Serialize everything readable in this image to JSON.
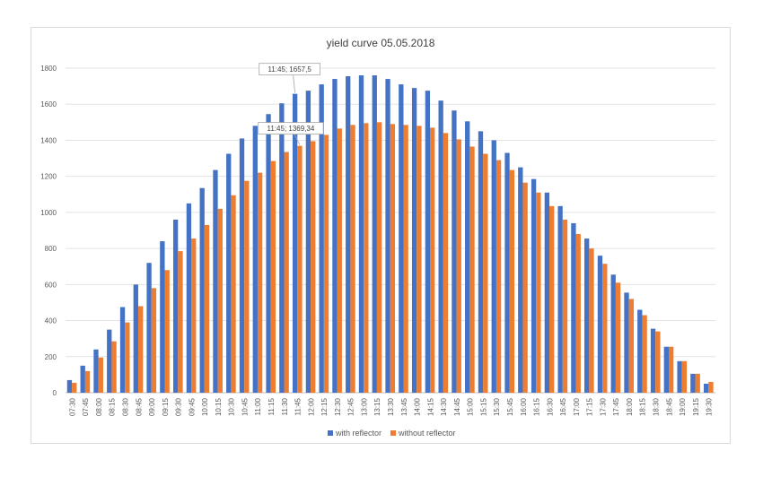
{
  "chart_data": {
    "type": "bar",
    "title": "yield curve 05.05.2018",
    "xlabel": "",
    "ylabel": "",
    "ylim": [
      0,
      1800
    ],
    "yticks": [
      0,
      200,
      400,
      600,
      800,
      1000,
      1200,
      1400,
      1600,
      1800
    ],
    "grid": true,
    "legend_position": "bottom",
    "categories": [
      "07:30",
      "07:45",
      "08:00",
      "08:15",
      "08:30",
      "08:45",
      "09:00",
      "09:15",
      "09:30",
      "09:45",
      "10:00",
      "10:15",
      "10:30",
      "10:45",
      "11:00",
      "11:15",
      "11:30",
      "11:45",
      "12:00",
      "12:15",
      "12:30",
      "12:45",
      "13:00",
      "13:15",
      "13:30",
      "13:45",
      "14:00",
      "14:15",
      "14:30",
      "14:45",
      "15:00",
      "15:15",
      "15:30",
      "15:45",
      "16:00",
      "16:15",
      "16:30",
      "16:45",
      "17:00",
      "17:15",
      "17:30",
      "17:45",
      "18:00",
      "18:15",
      "18:30",
      "18:45",
      "19:00",
      "19:15",
      "19:30"
    ],
    "series": [
      {
        "name": "with reflector",
        "color": "#4472c4",
        "values": [
          70,
          150,
          240,
          350,
          475,
          600,
          720,
          840,
          960,
          1050,
          1135,
          1235,
          1325,
          1410,
          1480,
          1545,
          1605,
          1657.5,
          1675,
          1710,
          1740,
          1755,
          1760,
          1760,
          1740,
          1710,
          1690,
          1675,
          1620,
          1565,
          1505,
          1450,
          1400,
          1330,
          1250,
          1185,
          1110,
          1035,
          940,
          855,
          760,
          655,
          555,
          460,
          355,
          255,
          175,
          105,
          50
        ]
      },
      {
        "name": "without reflector",
        "color": "#ed7d31",
        "values": [
          55,
          120,
          195,
          285,
          390,
          480,
          580,
          680,
          785,
          855,
          930,
          1020,
          1095,
          1175,
          1220,
          1285,
          1335,
          1369.34,
          1395,
          1430,
          1465,
          1485,
          1495,
          1500,
          1490,
          1485,
          1480,
          1470,
          1440,
          1405,
          1365,
          1325,
          1290,
          1235,
          1165,
          1110,
          1035,
          960,
          880,
          800,
          715,
          610,
          520,
          430,
          340,
          255,
          175,
          105,
          60
        ]
      }
    ],
    "annotations": [
      {
        "text": "11:45; 1657,5",
        "category": "11:45",
        "series": "with reflector"
      },
      {
        "text": "11:45; 1369,34",
        "category": "11:45",
        "series": "without reflector"
      }
    ]
  }
}
